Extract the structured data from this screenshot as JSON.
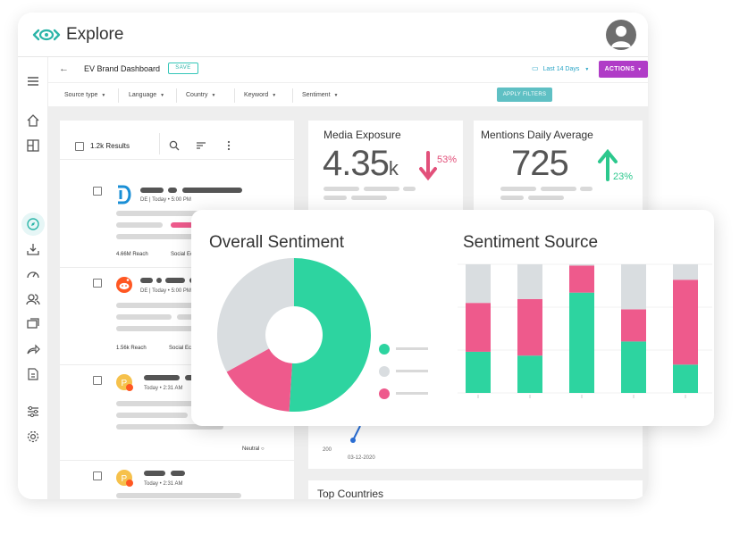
{
  "app": {
    "title": "Explore"
  },
  "dashboard": {
    "title": "EV Brand Dashboard",
    "save_label": "SAVE",
    "date_range": "Last 14 Days",
    "actions_label": "ACTIONS",
    "filters": [
      "Source type",
      "Language",
      "Country",
      "Keyword",
      "Sentiment"
    ],
    "apply_label": "APPLY FILTERS"
  },
  "results": {
    "count_label": "1.2k Results",
    "items": [
      {
        "meta": "DE | Today • 5:00 PM",
        "reach": "4.66M Reach",
        "source": "Social Echo"
      },
      {
        "meta": "DE | Today • 5:00 PM",
        "reach": "1.56k Reach",
        "source": "Social Echo"
      },
      {
        "meta": "Today • 2:31 AM",
        "sentiment": "Neutral"
      },
      {
        "meta": "Today • 2:31 AM"
      }
    ]
  },
  "metrics": {
    "media_exposure": {
      "title": "Media Exposure",
      "value": "4.35",
      "unit": "k",
      "change": "53%",
      "direction": "down",
      "color": "#e2507a"
    },
    "mentions": {
      "title": "Mentions Daily Average",
      "value": "725",
      "change": "23%",
      "direction": "up",
      "color": "#2cc88d"
    }
  },
  "line_chart": {
    "y_tick": "200",
    "x_tick": "03-12-2020"
  },
  "top_countries": {
    "title": "Top Countries"
  },
  "sentiment": {
    "overall_title": "Overall Sentiment",
    "source_title": "Sentiment Source",
    "colors": {
      "positive": "#2dd4a0",
      "neutral": "#d9dde0",
      "negative": "#ee5a8c"
    }
  },
  "chart_data": [
    {
      "type": "pie",
      "title": "Overall Sentiment",
      "slices": [
        {
          "color": "#2dd4a0",
          "value": 51
        },
        {
          "color": "#ee5a8c",
          "value": 16
        },
        {
          "color": "#d9dde0",
          "value": 33
        }
      ]
    },
    {
      "type": "bar",
      "title": "Sentiment Source",
      "stacked": true,
      "categories": [
        "",
        "",
        "",
        "",
        ""
      ],
      "series": [
        {
          "color": "#2dd4a0",
          "values": [
            32,
            29,
            78,
            40,
            22
          ]
        },
        {
          "color": "#ee5a8c",
          "values": [
            38,
            44,
            21,
            25,
            66
          ]
        },
        {
          "color": "#d9dde0",
          "values": [
            30,
            27,
            1,
            35,
            12
          ]
        }
      ]
    }
  ]
}
